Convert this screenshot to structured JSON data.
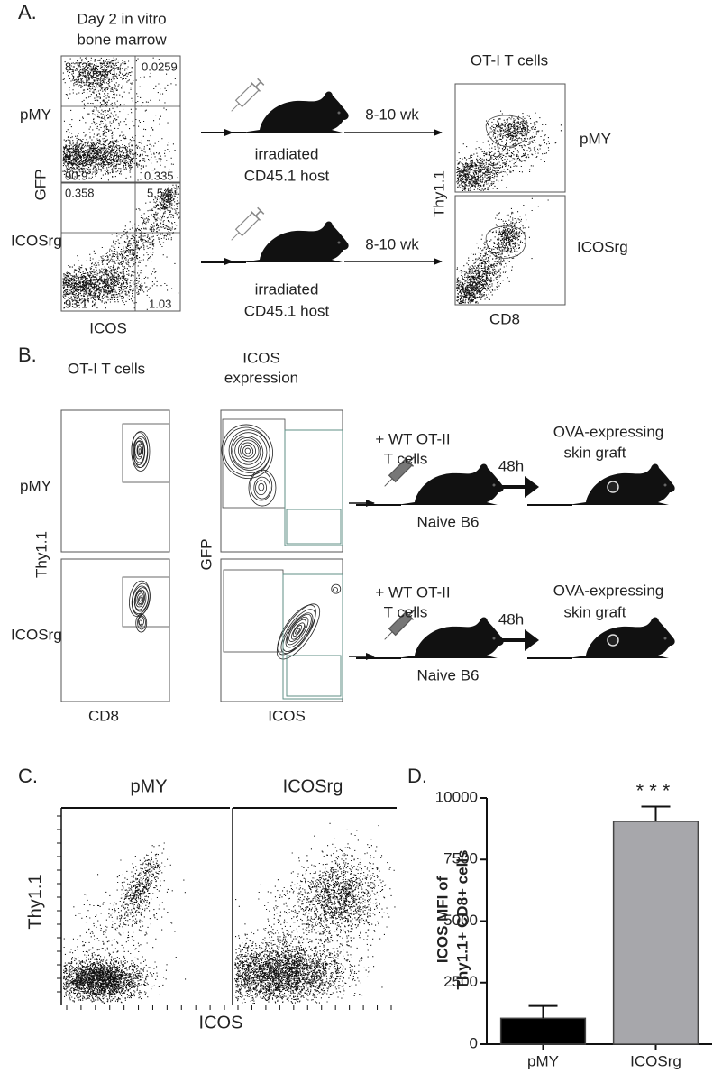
{
  "panel_a": {
    "label": "A.",
    "source_title": [
      "Day 2 in vitro",
      "bone marrow"
    ],
    "rows": [
      "pMY",
      "ICOSrg"
    ],
    "y_axis": "GFP",
    "x_axis": "ICOS",
    "quadrants": [
      [
        "8.72",
        "0.0259",
        "90.9",
        "0.335"
      ],
      [
        "0.358",
        "5.54",
        "93.1",
        "1.03"
      ]
    ],
    "host": [
      [
        "irradiated",
        "CD45.1 host"
      ],
      [
        "irradiated",
        "CD45.1 host"
      ]
    ],
    "interval": [
      "8-10 wk",
      "8-10 wk"
    ],
    "result_title": "OT-I T cells",
    "result_y_axis": "Thy1.1",
    "result_x_axis": "CD8",
    "result_rows": [
      "pMY",
      "ICOSrg"
    ]
  },
  "panel_b": {
    "label": "B.",
    "left_title": "OT-I T cells",
    "right_title": [
      "ICOS",
      "expression"
    ],
    "rows": [
      "pMY",
      "ICOSrg"
    ],
    "left_y_axis": "Thy1.1",
    "left_x_axis": "CD8",
    "right_y_axis": "GFP",
    "right_x_axis": "ICOS",
    "transfer": [
      [
        "+ WT OT-II",
        "T cells"
      ],
      [
        "+ WT OT-II",
        "T cells"
      ]
    ],
    "host": [
      "Naive B6",
      "Naive B6"
    ],
    "interval": [
      "48h",
      "48h"
    ],
    "graft": [
      [
        "OVA-expressing",
        "skin graft"
      ],
      [
        "OVA-expressing",
        "skin graft"
      ]
    ]
  },
  "panel_c": {
    "label": "C.",
    "columns": [
      "pMY",
      "ICOSrg"
    ],
    "y_axis": "Thy1.1",
    "x_axis": "ICOS"
  },
  "chart_data": {
    "type": "bar",
    "label": "D.",
    "y_label": [
      "ICOS MFI of",
      "Thy1.1+ CD8+ cells"
    ],
    "categories": [
      "pMY",
      "ICOSrg"
    ],
    "values": [
      1050,
      9050
    ],
    "errors": [
      500,
      600
    ],
    "colors": [
      "#000000",
      "#a7a7ab"
    ],
    "significance": "***",
    "ylim": [
      0,
      10000
    ],
    "yticks": [
      0,
      2500,
      5000,
      7500,
      10000
    ]
  }
}
